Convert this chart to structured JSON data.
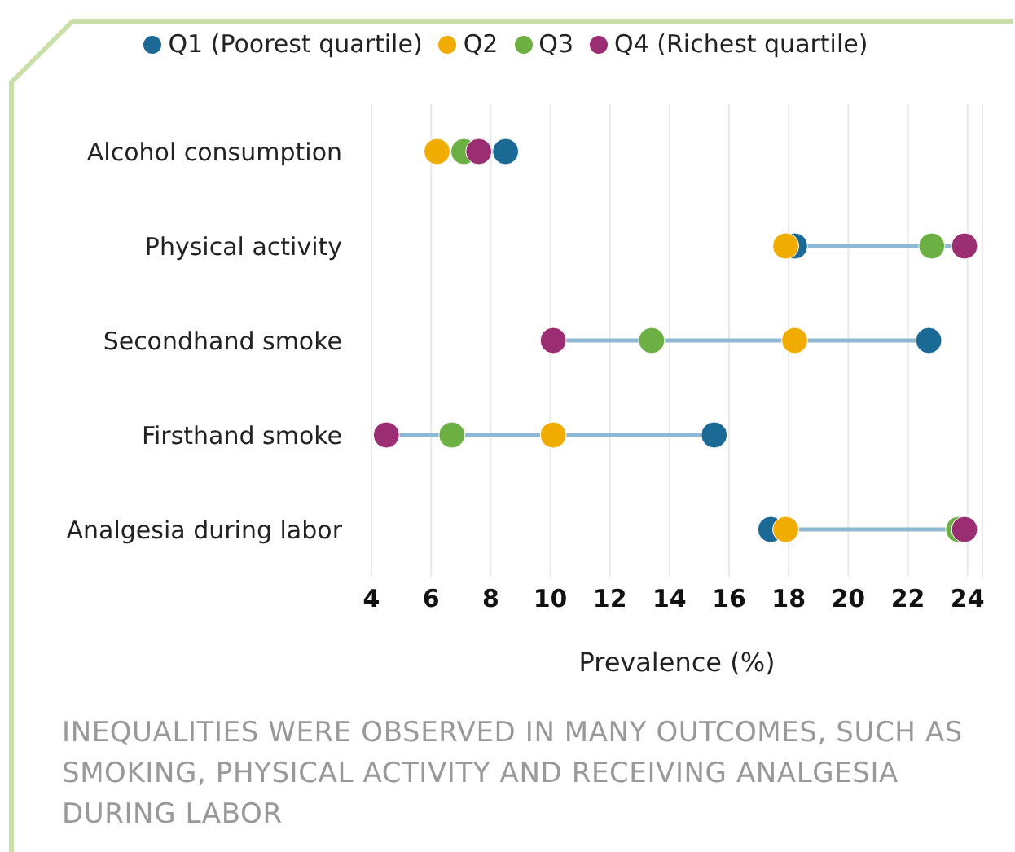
{
  "chart_data": {
    "type": "scatter",
    "xlabel": "Prevalence (%)",
    "categories": [
      "Alcohol consumption",
      "Physical activity",
      "Secondhand smoke",
      "Firsthand smoke",
      "Analgesia during labor"
    ],
    "series": [
      {
        "name": "Q1 (Poorest quartile)",
        "color": "#1b6a96",
        "values": [
          8.5,
          18.2,
          22.7,
          15.5,
          17.4
        ]
      },
      {
        "name": "Q2",
        "color": "#f0ac00",
        "values": [
          6.2,
          17.9,
          18.2,
          10.1,
          17.9
        ]
      },
      {
        "name": "Q3",
        "color": "#6cb043",
        "values": [
          7.1,
          22.8,
          13.4,
          6.7,
          23.7
        ]
      },
      {
        "name": "Q4 (Richest quartile)",
        "color": "#9b2d72",
        "values": [
          7.6,
          23.9,
          10.1,
          4.5,
          23.9
        ]
      }
    ],
    "xlim": [
      4,
      24.5
    ],
    "xticks": [
      4,
      6,
      8,
      10,
      12,
      14,
      16,
      18,
      20,
      22,
      24
    ],
    "grid": "x",
    "orientation": "horizontal",
    "legend": "top",
    "marker": "circle",
    "annotations": [
      "INEQUALITIES WERE OBSERVED IN MANY OUTCOMES, SUCH AS SMOKING, PHYSICAL ACTIVITY AND RECEIVING ANALGESIA DURING LABOR"
    ]
  }
}
